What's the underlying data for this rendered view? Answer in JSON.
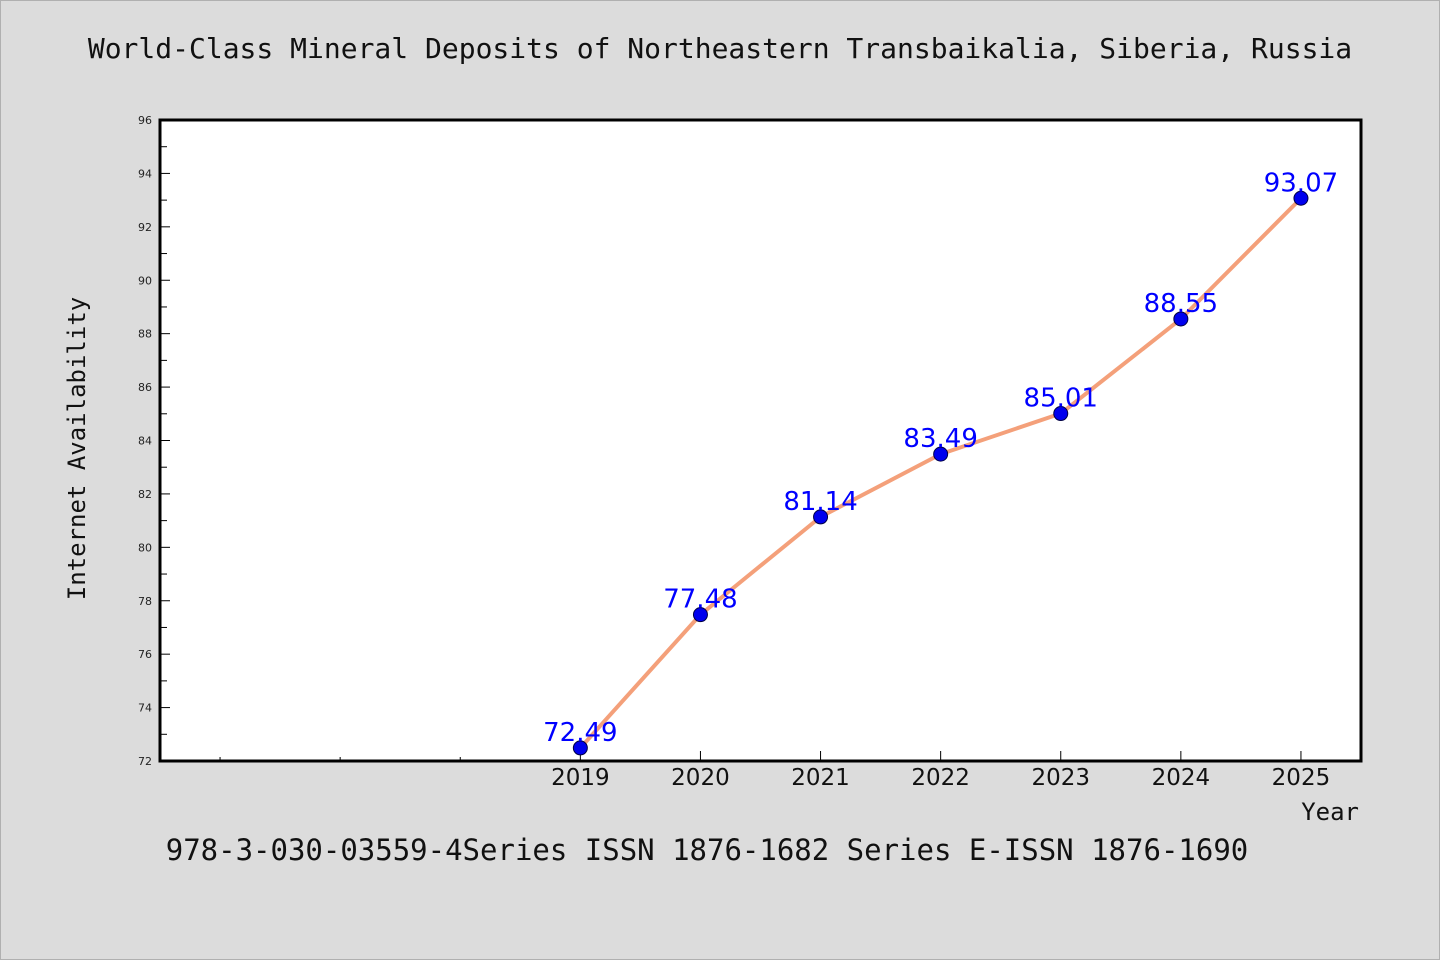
{
  "chart_data": {
    "type": "line",
    "title": "World-Class Mineral Deposits of Northeastern Transbaikalia, Siberia, Russia",
    "subtitle": "978-3-030-03559-4Series ISSN 1876-1682 Series E-ISSN 1876-1690",
    "xlabel": "Year",
    "ylabel": "Internet Availability",
    "categories": [
      "2019",
      "2020",
      "2021",
      "2022",
      "2023",
      "2024",
      "2025"
    ],
    "x": [
      2019,
      2020,
      2021,
      2022,
      2023,
      2024,
      2025
    ],
    "series": [
      {
        "values": [
          72.49,
          77.48,
          81.14,
          83.49,
          85.01,
          88.55,
          93.07
        ],
        "labels": [
          "72.49",
          "77.48",
          "81.14",
          "83.49",
          "85.01",
          "88.55",
          "93.07"
        ],
        "line_color": "#f4a07a",
        "marker_color": "#0000ee",
        "label_color": "#0000ff"
      }
    ],
    "xlim": [
      2015.5,
      2025.5
    ],
    "ylim": [
      72,
      96
    ],
    "yticks": [
      72,
      74,
      76,
      78,
      80,
      82,
      84,
      86,
      88,
      90,
      92,
      94,
      96
    ],
    "grid": false,
    "legend": false
  }
}
